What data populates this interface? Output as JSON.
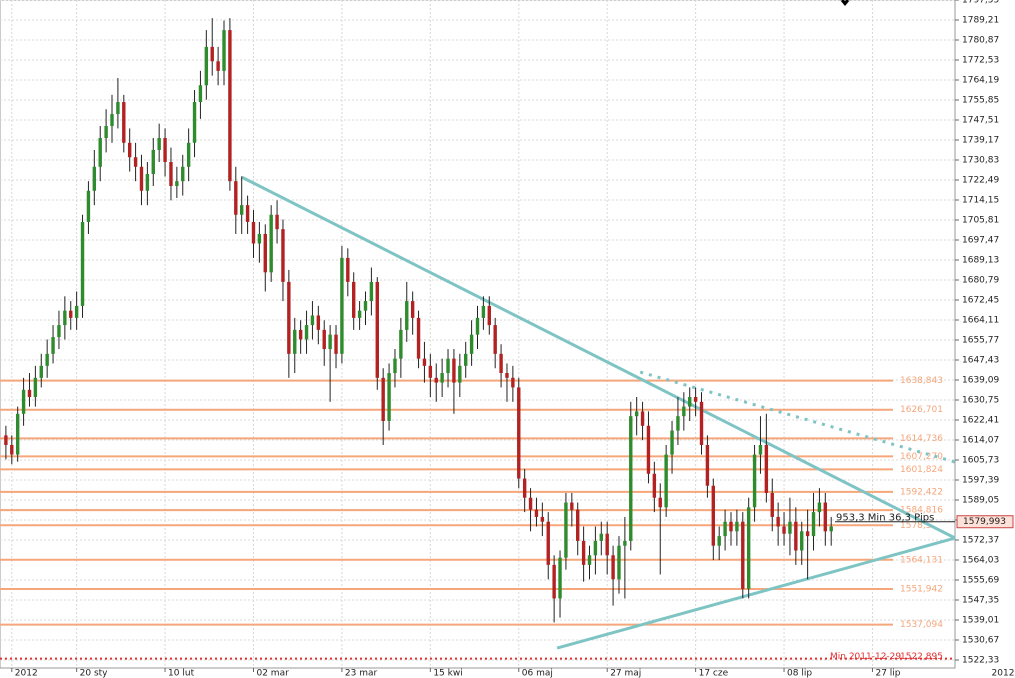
{
  "chart_data": {
    "type": "candlestick",
    "up_color": "#2e8b2e",
    "down_color": "#b22222",
    "xlim": [
      -1,
      161
    ],
    "xticks": [
      {
        "value": 1,
        "label": "2012"
      },
      {
        "value": 12,
        "label": "20 sty"
      },
      {
        "value": 27,
        "label": "10 lut"
      },
      {
        "value": 42,
        "label": "02 mar"
      },
      {
        "value": 57,
        "label": "23 mar"
      },
      {
        "value": 72,
        "label": "15 kwi"
      },
      {
        "value": 87,
        "label": "06 maj"
      },
      {
        "value": 102,
        "label": "27 maj"
      },
      {
        "value": 117,
        "label": "17 cze"
      },
      {
        "value": 132,
        "label": "08 lip"
      },
      {
        "value": 147,
        "label": "27 lip"
      }
    ],
    "corner_label": "2012",
    "ylim": [
      1519,
      1797.55
    ],
    "yticks": [
      {
        "value": 1522.33,
        "label": "1522,33"
      },
      {
        "value": 1530.67,
        "label": "1530,67"
      },
      {
        "value": 1539.01,
        "label": "1539,01"
      },
      {
        "value": 1547.35,
        "label": "1547,35"
      },
      {
        "value": 1555.69,
        "label": "1555,69"
      },
      {
        "value": 1564.03,
        "label": "1564,03"
      },
      {
        "value": 1572.37,
        "label": "1572,37"
      },
      {
        "value": 1580.71,
        "label": "1580,71"
      },
      {
        "value": 1589.05,
        "label": "1589,05"
      },
      {
        "value": 1597.39,
        "label": "1597,39"
      },
      {
        "value": 1605.73,
        "label": "1605,73"
      },
      {
        "value": 1614.07,
        "label": "1614,07"
      },
      {
        "value": 1622.41,
        "label": "1622,41"
      },
      {
        "value": 1630.75,
        "label": "1630,75"
      },
      {
        "value": 1639.09,
        "label": "1639,09"
      },
      {
        "value": 1647.43,
        "label": "1647,43"
      },
      {
        "value": 1655.77,
        "label": "1655,77"
      },
      {
        "value": 1664.11,
        "label": "1664,11"
      },
      {
        "value": 1672.45,
        "label": "1672,45"
      },
      {
        "value": 1680.79,
        "label": "1680,79"
      },
      {
        "value": 1689.13,
        "label": "1689,13"
      },
      {
        "value": 1697.47,
        "label": "1697,47"
      },
      {
        "value": 1705.81,
        "label": "1705,81"
      },
      {
        "value": 1714.15,
        "label": "1714,15"
      },
      {
        "value": 1722.49,
        "label": "1722,49"
      },
      {
        "value": 1730.83,
        "label": "1730,83"
      },
      {
        "value": 1739.17,
        "label": "1739,17"
      },
      {
        "value": 1747.51,
        "label": "1747,51"
      },
      {
        "value": 1755.85,
        "label": "1755,85"
      },
      {
        "value": 1764.19,
        "label": "1764,19"
      },
      {
        "value": 1772.53,
        "label": "1772,53"
      },
      {
        "value": 1780.87,
        "label": "1780,87"
      },
      {
        "value": 1789.21,
        "label": "1789,21"
      },
      {
        "value": 1797.55,
        "label": "1797,55"
      }
    ],
    "grid": true,
    "open": [
      1616,
      1612,
      1608,
      1625,
      1635,
      1632,
      1640,
      1645,
      1650,
      1657,
      1662,
      1668,
      1665,
      1670,
      1705,
      1718,
      1728,
      1740,
      1745,
      1750,
      1755,
      1738,
      1732,
      1728,
      1718,
      1725,
      1735,
      1740,
      1730,
      1720,
      1722,
      1728,
      1738,
      1755,
      1762,
      1778,
      1772,
      1768,
      1785,
      1722,
      1708,
      1712,
      1705,
      1696,
      1700,
      1684,
      1708,
      1702,
      1680,
      1650,
      1660,
      1656,
      1662,
      1666,
      1660,
      1652,
      1658,
      1650,
      1690,
      1680,
      1665,
      1668,
      1672,
      1680,
      1640,
      1622,
      1642,
      1648,
      1660,
      1672,
      1665,
      1648,
      1645,
      1640,
      1638,
      1642,
      1648,
      1638,
      1645,
      1650,
      1658,
      1665,
      1670,
      1662,
      1650,
      1642,
      1640,
      1636,
      1598,
      1590,
      1585,
      1582,
      1580,
      1562,
      1548,
      1565,
      1588,
      1585,
      1572,
      1562,
      1566,
      1572,
      1575,
      1566,
      1556,
      1570,
      1572,
      1624,
      1626,
      1620,
      1600,
      1590,
      1586,
      1608,
      1618,
      1624,
      1628,
      1632,
      1630,
      1612,
      1595,
      1570,
      1574,
      1580,
      1576,
      1580,
      1552,
      1586,
      1608,
      1612,
      1592,
      1582,
      1578,
      1575,
      1580,
      1568,
      1576,
      1574,
      1584,
      1588,
      1576
    ],
    "high": [
      1620,
      1616,
      1628,
      1640,
      1642,
      1645,
      1650,
      1656,
      1662,
      1668,
      1674,
      1672,
      1676,
      1708,
      1722,
      1735,
      1745,
      1752,
      1758,
      1765,
      1758,
      1744,
      1738,
      1733,
      1730,
      1740,
      1746,
      1744,
      1736,
      1728,
      1733,
      1744,
      1760,
      1768,
      1785,
      1790,
      1778,
      1789,
      1790,
      1728,
      1724,
      1716,
      1710,
      1705,
      1704,
      1712,
      1714,
      1706,
      1685,
      1665,
      1664,
      1668,
      1672,
      1670,
      1664,
      1662,
      1662,
      1695,
      1694,
      1684,
      1672,
      1676,
      1686,
      1682,
      1644,
      1646,
      1652,
      1665,
      1680,
      1676,
      1668,
      1655,
      1650,
      1646,
      1648,
      1652,
      1652,
      1650,
      1655,
      1664,
      1670,
      1674,
      1674,
      1665,
      1654,
      1646,
      1645,
      1640,
      1602,
      1594,
      1590,
      1588,
      1584,
      1566,
      1568,
      1592,
      1592,
      1588,
      1578,
      1570,
      1578,
      1580,
      1580,
      1570,
      1574,
      1582,
      1630,
      1632,
      1630,
      1626,
      1605,
      1596,
      1612,
      1622,
      1632,
      1634,
      1636,
      1636,
      1634,
      1616,
      1598,
      1578,
      1585,
      1584,
      1585,
      1584,
      1590,
      1612,
      1624,
      1625,
      1598,
      1588,
      1584,
      1590,
      1586,
      1580,
      1585,
      1592,
      1594,
      1592,
      1582
    ],
    "low": [
      1606,
      1604,
      1605,
      1620,
      1628,
      1628,
      1636,
      1640,
      1646,
      1652,
      1656,
      1660,
      1660,
      1665,
      1700,
      1712,
      1722,
      1734,
      1738,
      1744,
      1734,
      1726,
      1722,
      1712,
      1712,
      1720,
      1730,
      1724,
      1714,
      1715,
      1716,
      1722,
      1732,
      1748,
      1756,
      1766,
      1762,
      1762,
      1718,
      1700,
      1700,
      1700,
      1690,
      1688,
      1676,
      1680,
      1696,
      1672,
      1640,
      1642,
      1650,
      1650,
      1656,
      1654,
      1645,
      1630,
      1644,
      1646,
      1674,
      1660,
      1660,
      1662,
      1666,
      1635,
      1612,
      1618,
      1636,
      1640,
      1655,
      1658,
      1644,
      1638,
      1632,
      1630,
      1632,
      1636,
      1625,
      1632,
      1640,
      1645,
      1652,
      1660,
      1658,
      1644,
      1636,
      1630,
      1630,
      1594,
      1584,
      1576,
      1578,
      1574,
      1556,
      1538,
      1540,
      1560,
      1578,
      1566,
      1555,
      1556,
      1558,
      1566,
      1558,
      1545,
      1550,
      1548,
      1568,
      1616,
      1614,
      1596,
      1584,
      1558,
      1582,
      1600,
      1612,
      1618,
      1622,
      1624,
      1608,
      1590,
      1564,
      1564,
      1568,
      1570,
      1570,
      1548,
      1548,
      1580,
      1600,
      1588,
      1576,
      1570,
      1570,
      1566,
      1562,
      1562,
      1556,
      1568,
      1578,
      1570,
      1570
    ],
    "close": [
      1612,
      1608,
      1625,
      1635,
      1632,
      1640,
      1645,
      1650,
      1657,
      1662,
      1668,
      1665,
      1670,
      1705,
      1718,
      1728,
      1740,
      1745,
      1750,
      1755,
      1738,
      1732,
      1728,
      1718,
      1725,
      1735,
      1740,
      1730,
      1720,
      1722,
      1728,
      1738,
      1755,
      1762,
      1778,
      1772,
      1768,
      1785,
      1722,
      1708,
      1712,
      1705,
      1696,
      1700,
      1684,
      1708,
      1702,
      1680,
      1650,
      1660,
      1656,
      1662,
      1666,
      1660,
      1652,
      1658,
      1650,
      1690,
      1680,
      1665,
      1668,
      1672,
      1680,
      1640,
      1622,
      1642,
      1648,
      1660,
      1672,
      1665,
      1648,
      1645,
      1640,
      1638,
      1642,
      1648,
      1638,
      1645,
      1650,
      1658,
      1665,
      1670,
      1662,
      1650,
      1642,
      1640,
      1636,
      1598,
      1590,
      1585,
      1582,
      1580,
      1562,
      1548,
      1565,
      1588,
      1585,
      1572,
      1562,
      1566,
      1572,
      1575,
      1566,
      1556,
      1570,
      1572,
      1624,
      1626,
      1620,
      1600,
      1590,
      1586,
      1608,
      1618,
      1624,
      1628,
      1632,
      1630,
      1612,
      1595,
      1570,
      1574,
      1580,
      1576,
      1580,
      1552,
      1586,
      1608,
      1612,
      1592,
      1582,
      1578,
      1575,
      1580,
      1568,
      1576,
      1574,
      1584,
      1588,
      1576,
      1578
    ],
    "level_color": "#f5a67a",
    "levels": [
      {
        "value": 1638.843,
        "label": "1638,843"
      },
      {
        "value": 1626.701,
        "label": "1626,701"
      },
      {
        "value": 1614.736,
        "label": "1614,736"
      },
      {
        "value": 1607.27,
        "label": "1607,270"
      },
      {
        "value": 1601.824,
        "label": "1601,824"
      },
      {
        "value": 1592.422,
        "label": "1592,422"
      },
      {
        "value": 1584.816,
        "label": "1584,816"
      },
      {
        "value": 1578.5,
        "label": "1578,5"
      },
      {
        "value": 1564.131,
        "label": "1564,131"
      },
      {
        "value": 1551.942,
        "label": "1551,942"
      },
      {
        "value": 1537.094,
        "label": "1537,094"
      }
    ],
    "min_line": {
      "value": 1522.895,
      "label": "1522,895",
      "text": "Min 2011-12-29",
      "color": "#e03030"
    },
    "trend_color": "#7fc4c4",
    "trendlines": [
      {
        "x": [
          40,
          161
        ],
        "y": [
          1723.7,
          1573.2
        ]
      },
      {
        "x": [
          93.5,
          161
        ],
        "y": [
          1527.3,
          1573.2
        ]
      },
      {
        "x": [
          107.6,
          161
        ],
        "y": [
          1642.4,
          1604.9
        ],
        "dotted": true
      }
    ],
    "last_price": {
      "value": 1579.993,
      "label": "1579,993"
    },
    "annotation": "953,3 Min 36,3 Pips"
  }
}
